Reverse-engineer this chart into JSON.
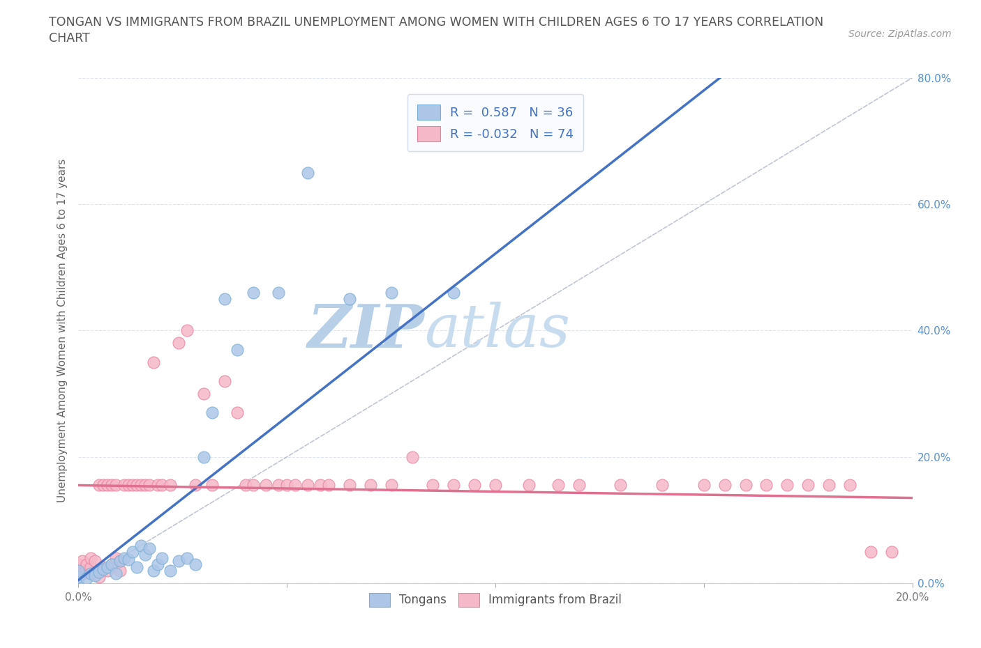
{
  "title_line1": "TONGAN VS IMMIGRANTS FROM BRAZIL UNEMPLOYMENT AMONG WOMEN WITH CHILDREN AGES 6 TO 17 YEARS CORRELATION",
  "title_line2": "CHART",
  "source": "Source: ZipAtlas.com",
  "ylabel": "Unemployment Among Women with Children Ages 6 to 17 years",
  "xlim": [
    0.0,
    0.2
  ],
  "ylim": [
    0.0,
    0.8
  ],
  "xticks": [
    0.0,
    0.05,
    0.1,
    0.15,
    0.2
  ],
  "yticks": [
    0.0,
    0.2,
    0.4,
    0.6,
    0.8
  ],
  "xtick_labels": [
    "0.0%",
    "",
    "",
    "",
    "20.0%"
  ],
  "ytick_labels_left": [
    "",
    "",
    "",
    "",
    ""
  ],
  "ytick_labels_right": [
    "0.0%",
    "20.0%",
    "40.0%",
    "60.0%",
    "80.0%"
  ],
  "tongan_R": 0.587,
  "tongan_N": 36,
  "brazil_R": -0.032,
  "brazil_N": 74,
  "tongan_color": "#adc6e8",
  "tongan_edge_color": "#7aafd4",
  "brazil_color": "#f5b8c8",
  "brazil_edge_color": "#e882a0",
  "tongan_line_color": "#4472c4",
  "brazil_line_color": "#e07090",
  "diagonal_color": "#b0b8c8",
  "watermark_color": "#d5e4f5",
  "background_color": "#ffffff",
  "grid_color": "#e0e5ee",
  "title_color": "#555555",
  "legend_text_color": "#4472c4",
  "tongan_scatter_x": [
    0.0,
    0.0,
    0.0,
    0.002,
    0.003,
    0.004,
    0.005,
    0.006,
    0.007,
    0.008,
    0.009,
    0.01,
    0.011,
    0.012,
    0.013,
    0.014,
    0.015,
    0.016,
    0.017,
    0.018,
    0.019,
    0.02,
    0.022,
    0.024,
    0.026,
    0.028,
    0.03,
    0.032,
    0.035,
    0.038,
    0.042,
    0.048,
    0.055,
    0.065,
    0.075,
    0.09
  ],
  "tongan_scatter_y": [
    0.005,
    0.01,
    0.02,
    0.008,
    0.015,
    0.012,
    0.018,
    0.022,
    0.025,
    0.03,
    0.015,
    0.035,
    0.04,
    0.038,
    0.05,
    0.025,
    0.06,
    0.045,
    0.055,
    0.02,
    0.03,
    0.04,
    0.02,
    0.035,
    0.04,
    0.03,
    0.2,
    0.27,
    0.45,
    0.37,
    0.46,
    0.46,
    0.65,
    0.45,
    0.46,
    0.46
  ],
  "brazil_scatter_x": [
    0.0,
    0.0,
    0.0,
    0.0,
    0.001,
    0.001,
    0.002,
    0.002,
    0.003,
    0.003,
    0.004,
    0.004,
    0.005,
    0.005,
    0.006,
    0.006,
    0.007,
    0.007,
    0.008,
    0.008,
    0.009,
    0.009,
    0.01,
    0.01,
    0.011,
    0.012,
    0.013,
    0.014,
    0.015,
    0.016,
    0.017,
    0.018,
    0.019,
    0.02,
    0.022,
    0.024,
    0.026,
    0.028,
    0.03,
    0.032,
    0.035,
    0.038,
    0.04,
    0.042,
    0.045,
    0.048,
    0.05,
    0.052,
    0.055,
    0.058,
    0.06,
    0.065,
    0.07,
    0.075,
    0.08,
    0.085,
    0.09,
    0.095,
    0.1,
    0.108,
    0.115,
    0.12,
    0.13,
    0.14,
    0.15,
    0.155,
    0.16,
    0.165,
    0.17,
    0.175,
    0.18,
    0.185,
    0.19,
    0.195
  ],
  "brazil_scatter_y": [
    0.015,
    0.02,
    0.025,
    0.03,
    0.015,
    0.035,
    0.02,
    0.03,
    0.025,
    0.04,
    0.015,
    0.035,
    0.01,
    0.155,
    0.025,
    0.155,
    0.02,
    0.155,
    0.03,
    0.155,
    0.04,
    0.155,
    0.02,
    0.035,
    0.155,
    0.155,
    0.155,
    0.155,
    0.155,
    0.155,
    0.155,
    0.35,
    0.155,
    0.155,
    0.155,
    0.38,
    0.4,
    0.155,
    0.3,
    0.155,
    0.32,
    0.27,
    0.155,
    0.155,
    0.155,
    0.155,
    0.155,
    0.155,
    0.155,
    0.155,
    0.155,
    0.155,
    0.155,
    0.155,
    0.2,
    0.155,
    0.155,
    0.155,
    0.155,
    0.155,
    0.155,
    0.155,
    0.155,
    0.155,
    0.155,
    0.155,
    0.155,
    0.155,
    0.155,
    0.155,
    0.155,
    0.155,
    0.05,
    0.05
  ]
}
